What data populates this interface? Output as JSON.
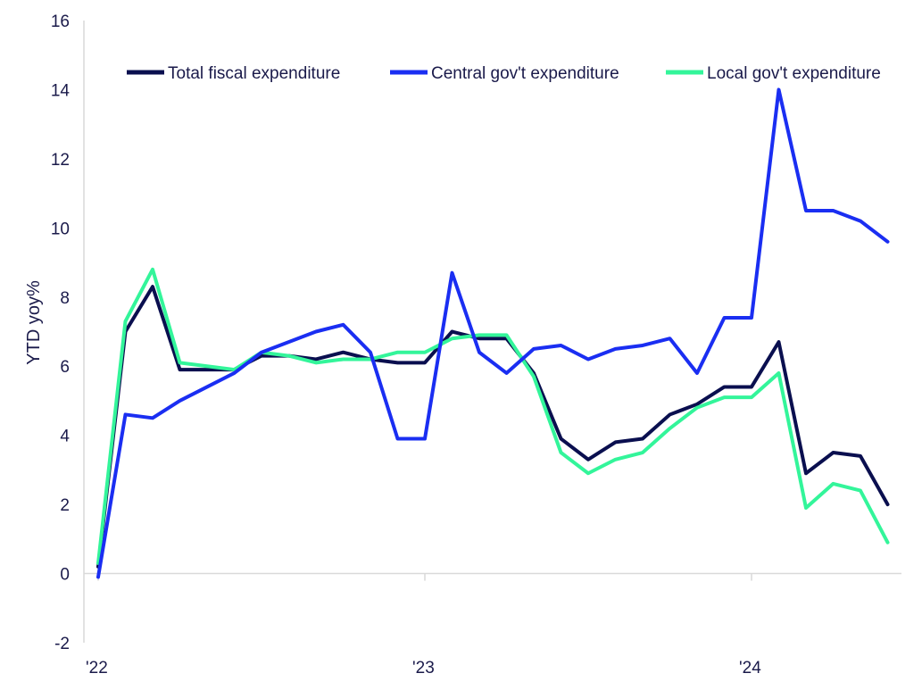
{
  "chart_data": {
    "type": "line",
    "title": "",
    "xlabel": "",
    "ylabel": "YTD yoy%",
    "ylim": [
      -2,
      16
    ],
    "yticks": [
      -2,
      0,
      2,
      4,
      6,
      8,
      10,
      12,
      14,
      16
    ],
    "x_tick_labels": [
      {
        "index": 0,
        "label": "'22"
      },
      {
        "index": 12,
        "label": "'23"
      },
      {
        "index": 24,
        "label": "'24"
      }
    ],
    "legend_position": "top",
    "grid": false,
    "series": [
      {
        "name": "Total fiscal expenditure",
        "color": "#0a0f4f",
        "values": [
          0.2,
          7.0,
          8.3,
          5.9,
          5.9,
          5.9,
          6.3,
          6.3,
          6.2,
          6.4,
          6.2,
          6.1,
          6.1,
          7.0,
          6.8,
          6.8,
          5.8,
          3.9,
          3.3,
          3.8,
          3.9,
          4.6,
          4.9,
          5.4,
          5.4,
          6.7,
          2.9,
          3.5,
          3.4,
          2.0
        ]
      },
      {
        "name": "Central gov't expenditure",
        "color": "#1a2ef2",
        "values": [
          -0.1,
          4.6,
          4.5,
          5.0,
          5.4,
          5.8,
          6.4,
          6.7,
          7.0,
          7.2,
          6.4,
          3.9,
          3.9,
          8.7,
          6.4,
          5.8,
          6.5,
          6.6,
          6.2,
          6.5,
          6.6,
          6.8,
          5.8,
          7.4,
          7.4,
          14.0,
          10.5,
          10.5,
          10.2,
          9.6
        ]
      },
      {
        "name": "Local gov't expenditure",
        "color": "#33f59a",
        "values": [
          0.3,
          7.3,
          8.8,
          6.1,
          6.0,
          5.9,
          6.4,
          6.3,
          6.1,
          6.2,
          6.2,
          6.4,
          6.4,
          6.8,
          6.9,
          6.9,
          5.7,
          3.5,
          2.9,
          3.3,
          3.5,
          4.2,
          4.8,
          5.1,
          5.1,
          5.8,
          1.9,
          2.6,
          2.4,
          0.9
        ]
      }
    ]
  }
}
